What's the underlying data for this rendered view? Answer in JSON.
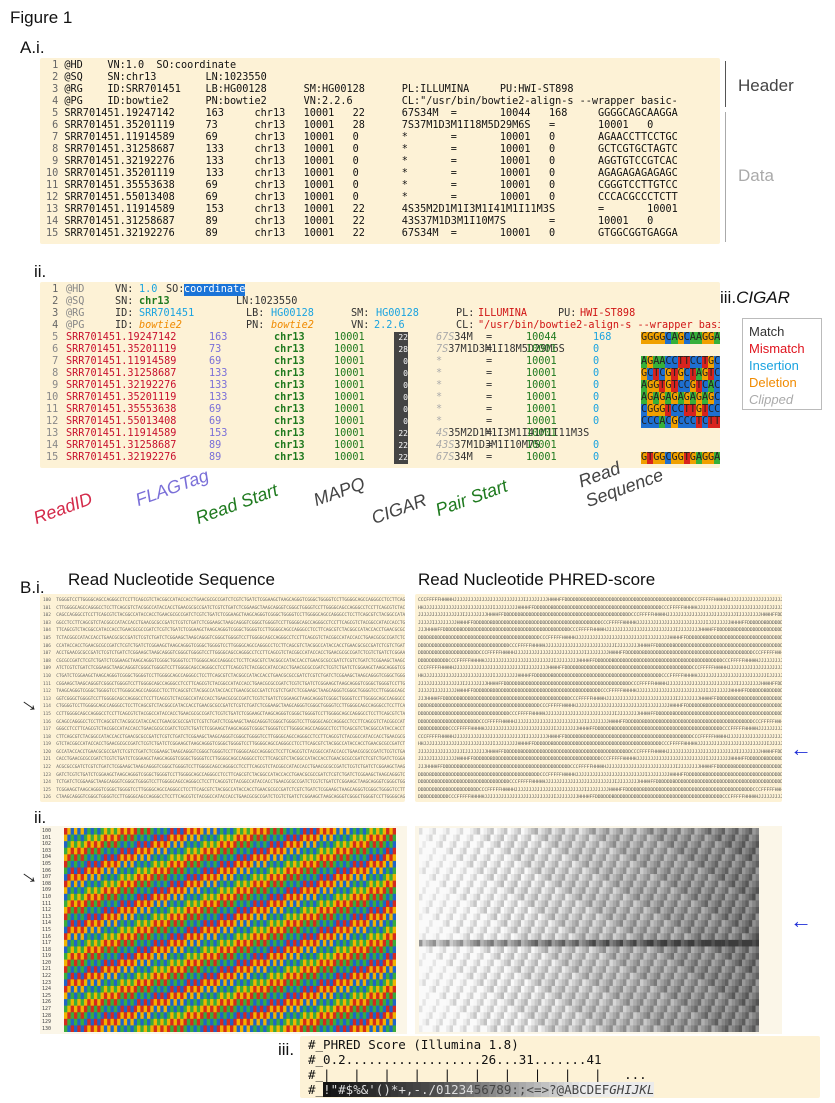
{
  "figure_title": "Figure 1",
  "panel_a": {
    "label": "A.i.",
    "sub_ii": "ii.",
    "header_label": "Header",
    "data_label": "Data",
    "lines_i": [
      {
        "n": "1",
        "t": "@HD    VN:1.0  SO:coordinate"
      },
      {
        "n": "2",
        "t": "@SQ    SN:chr13        LN:1023550"
      },
      {
        "n": "3",
        "t": "@RG    ID:SRR701451    LB:HG00128      SM:HG00128      PL:ILLUMINA     PU:HWI-ST898"
      },
      {
        "n": "4",
        "t": "@PG    ID:bowtie2      PN:bowtie2      VN:2.2.6        CL:\"/usr/bin/bowtie2-align-s --wrapper basic-"
      },
      {
        "n": "5",
        "t": "SRR701451.19247142     163     chr13   10001   22      67S34M  =       10044   168     GGGGCAGCAAGGA"
      },
      {
        "n": "6",
        "t": "SRR701451.35201119     73      chr13   10001   28      7S37M1D3M1I18M5D29M6S   =       10001   0"
      },
      {
        "n": "7",
        "t": "SRR701451.11914589     69      chr13   10001   0       *       =       10001   0       AGAACCTTCCTGC"
      },
      {
        "n": "8",
        "t": "SRR701451.31258687     133     chr13   10001   0       *       =       10001   0       GCTCGTGCTAGTC"
      },
      {
        "n": "9",
        "t": "SRR701451.32192276     133     chr13   10001   0       *       =       10001   0       AGGTGTCCGTCAC"
      },
      {
        "n": "10",
        "t": "SRR701451.35201119     133     chr13   10001   0       *       =       10001   0       AGAGAGAGAGAGC"
      },
      {
        "n": "11",
        "t": "SRR701451.35553638     69      chr13   10001   0       *       =       10001   0       CGGGTCCTTGTCC"
      },
      {
        "n": "12",
        "t": "SRR701451.55013408     69      chr13   10001   0       *       =       10001   0       CCCACGCCCTCTT"
      },
      {
        "n": "13",
        "t": "SRR701451.11914589     153     chr13   10001   22      4S35M2D1M1I3M1I41M1I11M3S       =       10001"
      },
      {
        "n": "14",
        "t": "SRR701451.31258687     89      chr13   10001   22      43S37M1D3M1I10M7S       =       10001   0"
      },
      {
        "n": "15",
        "t": "SRR701451.32192276     89      chr13   10001   22      67S34M  =       10001   0       GTGGCGGTGAGGA"
      }
    ],
    "ii_rows": [
      {
        "n": "5",
        "id": "SRR701451.19247142",
        "flag": "163",
        "chr": "chr13",
        "start": "10001",
        "mapq": "22",
        "cig_clip": "67S",
        "cig": "34M",
        "eq": "=",
        "pstart": "10044",
        "tlen": "168",
        "seq": "GGGGCAGCAAGGA"
      },
      {
        "n": "6",
        "id": "SRR701451.35201119",
        "flag": "73",
        "chr": "chr13",
        "start": "10001",
        "mapq": "28",
        "cig_clip": "7S",
        "cig": "37M1D3M1I18M5D29M6S",
        "eq": "=",
        "pstart": "10001",
        "tlen": "0",
        "seq": ""
      },
      {
        "n": "7",
        "id": "SRR701451.11914589",
        "flag": "69",
        "chr": "chr13",
        "start": "10001",
        "mapq": "0",
        "cig_clip": "*",
        "cig": "",
        "eq": "=",
        "pstart": "10001",
        "tlen": "0",
        "seq": "AGAACCTTCCTGC"
      },
      {
        "n": "8",
        "id": "SRR701451.31258687",
        "flag": "133",
        "chr": "chr13",
        "start": "10001",
        "mapq": "0",
        "cig_clip": "*",
        "cig": "",
        "eq": "=",
        "pstart": "10001",
        "tlen": "0",
        "seq": "GCTCGTGCTAGTC"
      },
      {
        "n": "9",
        "id": "SRR701451.32192276",
        "flag": "133",
        "chr": "chr13",
        "start": "10001",
        "mapq": "0",
        "cig_clip": "*",
        "cig": "",
        "eq": "=",
        "pstart": "10001",
        "tlen": "0",
        "seq": "AGGTGTCCGTCAC"
      },
      {
        "n": "10",
        "id": "SRR701451.35201119",
        "flag": "133",
        "chr": "chr13",
        "start": "10001",
        "mapq": "0",
        "cig_clip": "*",
        "cig": "",
        "eq": "=",
        "pstart": "10001",
        "tlen": "0",
        "seq": "AGAGAGAGAGAGC"
      },
      {
        "n": "11",
        "id": "SRR701451.35553638",
        "flag": "69",
        "chr": "chr13",
        "start": "10001",
        "mapq": "0",
        "cig_clip": "*",
        "cig": "",
        "eq": "=",
        "pstart": "10001",
        "tlen": "0",
        "seq": "CGGGTCCTTGTCC"
      },
      {
        "n": "12",
        "id": "SRR701451.55013408",
        "flag": "69",
        "chr": "chr13",
        "start": "10001",
        "mapq": "0",
        "cig_clip": "*",
        "cig": "",
        "eq": "=",
        "pstart": "10001",
        "tlen": "0",
        "seq": "CCCACGCCCTCTT"
      },
      {
        "n": "13",
        "id": "SRR701451.11914589",
        "flag": "153",
        "chr": "chr13",
        "start": "10001",
        "mapq": "22",
        "cig_clip": "4S",
        "cig": "35M2D1M1I3M1I41M1I11M3S",
        "eq": "=",
        "pstart": "10001",
        "tlen": "",
        "seq": ""
      },
      {
        "n": "14",
        "id": "SRR701451.31258687",
        "flag": "89",
        "chr": "chr13",
        "start": "10001",
        "mapq": "22",
        "cig_clip": "43S",
        "cig": "37M1D3M1I10M7S",
        "eq": "=",
        "pstart": "10001",
        "tlen": "0",
        "seq": ""
      },
      {
        "n": "15",
        "id": "SRR701451.32192276",
        "flag": "89",
        "chr": "chr13",
        "start": "10001",
        "mapq": "22",
        "cig_clip": "67S",
        "cig": "34M",
        "eq": "=",
        "pstart": "10001",
        "tlen": "0",
        "seq": "GTGGCGGTGAGGA"
      }
    ],
    "ii_head": [
      {
        "n": "1",
        "parts": [
          "@HD",
          "VN:",
          "1.0",
          "SO:",
          "coordinate"
        ]
      },
      {
        "n": "2",
        "parts": [
          "@SQ",
          "SN:",
          "chr13",
          "LN:1023550"
        ]
      },
      {
        "n": "3",
        "parts": [
          "@RG",
          "ID:",
          "SRR701451",
          "LB:",
          "HG00128",
          "SM:",
          "HG00128",
          "PL:",
          "ILLUMINA",
          "PU:",
          "HWI-ST898"
        ]
      },
      {
        "n": "4",
        "parts": [
          "@PG",
          "ID:",
          "bowtie2",
          "PN:",
          "bowtie2",
          "VN:",
          "2.2.6",
          "CL:",
          "\"/usr/bin/bowtie2-align-s --wrapper basic-"
        ]
      }
    ],
    "col_labels": [
      "ReadID",
      "FLAGTag",
      "Read Start",
      "MAPQ",
      "CIGAR",
      "Pair Start",
      "Read Sequence"
    ],
    "col_colors": [
      "#d42a4a",
      "#7a6fd8",
      "#1f7a1f",
      "#444444",
      "#444444",
      "#1f7a1f",
      "#444444"
    ],
    "cigar_title": "iii.",
    "cigar_word": "CIGAR",
    "cigar_legend": [
      {
        "label": "Match",
        "color": "#333333"
      },
      {
        "label": "Mismatch",
        "color": "#e0141e"
      },
      {
        "label": "Insertion",
        "color": "#1aa3e0"
      },
      {
        "label": "Deletion",
        "color": "#f08a00"
      },
      {
        "label": "Clipped",
        "color": "#aaaaaa"
      }
    ]
  },
  "panel_b": {
    "label": "B.i.",
    "sub_ii": "ii.",
    "seq_title": "Read Nucleotide Sequence",
    "phred_title": "Read Nucleotide PHRED-score",
    "row_numbers_top": [
      "100",
      "101",
      "102",
      "103",
      "104",
      "105",
      "106",
      "107",
      "108",
      "109",
      "110",
      "111",
      "112",
      "113",
      "114",
      "115",
      "116",
      "117",
      "118",
      "119",
      "120",
      "121",
      "122",
      "123",
      "124",
      "125",
      "126"
    ],
    "row_numbers_bottom": [
      "100",
      "101",
      "102",
      "103",
      "104",
      "105",
      "106",
      "107",
      "108",
      "109",
      "110",
      "111",
      "112",
      "113",
      "114",
      "115",
      "116",
      "117",
      "118",
      "119",
      "120",
      "121",
      "122",
      "123",
      "124",
      "125",
      "126",
      "127",
      "128",
      "129",
      "130"
    ],
    "seq_text_sample": "TGGGGTCCTTGGGGCAGCCAGGGCCTCCTTCAGCGTCTACGGCCATACCACCTGAACGCGCCGATCTCGTCTGATCTCGGAAGCTAAGCAGGGTCGGGC",
    "phred_text_sample": "CCCFFFFFHHHHHJJJJJJJJJJJJJJJJJJJJJJJJJIJJJJJJJJHHHHFFDDDDDDBDDDDDDDDDDDDDDDDDDDDDDDDDDDDDDDDDDDDDDD",
    "iii_label": "iii.",
    "phred_lines": [
      "#_PHRED Score (Illumina 1.8)",
      "#_0.2..................26...31.......41",
      "#_|   |   |   |   |   |   |   |   |   |   ...",
      "#_!\"#$%&'()*+,-./0123456789:;<=>?@ABCDEFGHIJKL"
    ]
  }
}
